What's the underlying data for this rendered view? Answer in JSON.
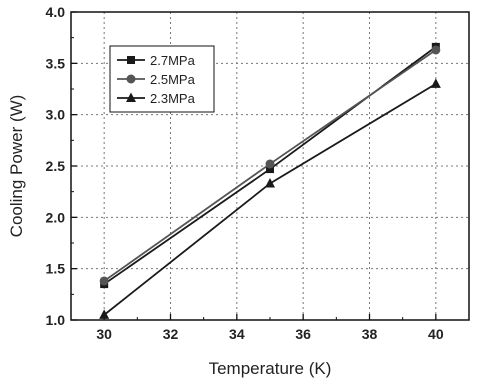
{
  "chart_data": {
    "type": "line",
    "title": "",
    "xlabel": "Temperature (K)",
    "ylabel": "Cooling Power (W)",
    "x": [
      30,
      35,
      40
    ],
    "xlim": [
      29,
      41
    ],
    "ylim": [
      1.0,
      4.0
    ],
    "xticks": [
      "30",
      "32",
      "34",
      "36",
      "38",
      "40"
    ],
    "yticks": [
      "1.0",
      "1.5",
      "2.0",
      "2.5",
      "3.0",
      "3.5",
      "4.0"
    ],
    "grid": true,
    "legend_position": "top-left",
    "series": [
      {
        "name": "2.7MPa",
        "values": [
          1.35,
          2.47,
          3.66
        ],
        "marker": "square",
        "color": "#1a1a1a"
      },
      {
        "name": "2.5MPa",
        "values": [
          1.38,
          2.52,
          3.63
        ],
        "marker": "circle",
        "color": "#555555"
      },
      {
        "name": "2.3MPa",
        "values": [
          1.05,
          2.33,
          3.3
        ],
        "marker": "triangle",
        "color": "#1a1a1a"
      }
    ]
  }
}
